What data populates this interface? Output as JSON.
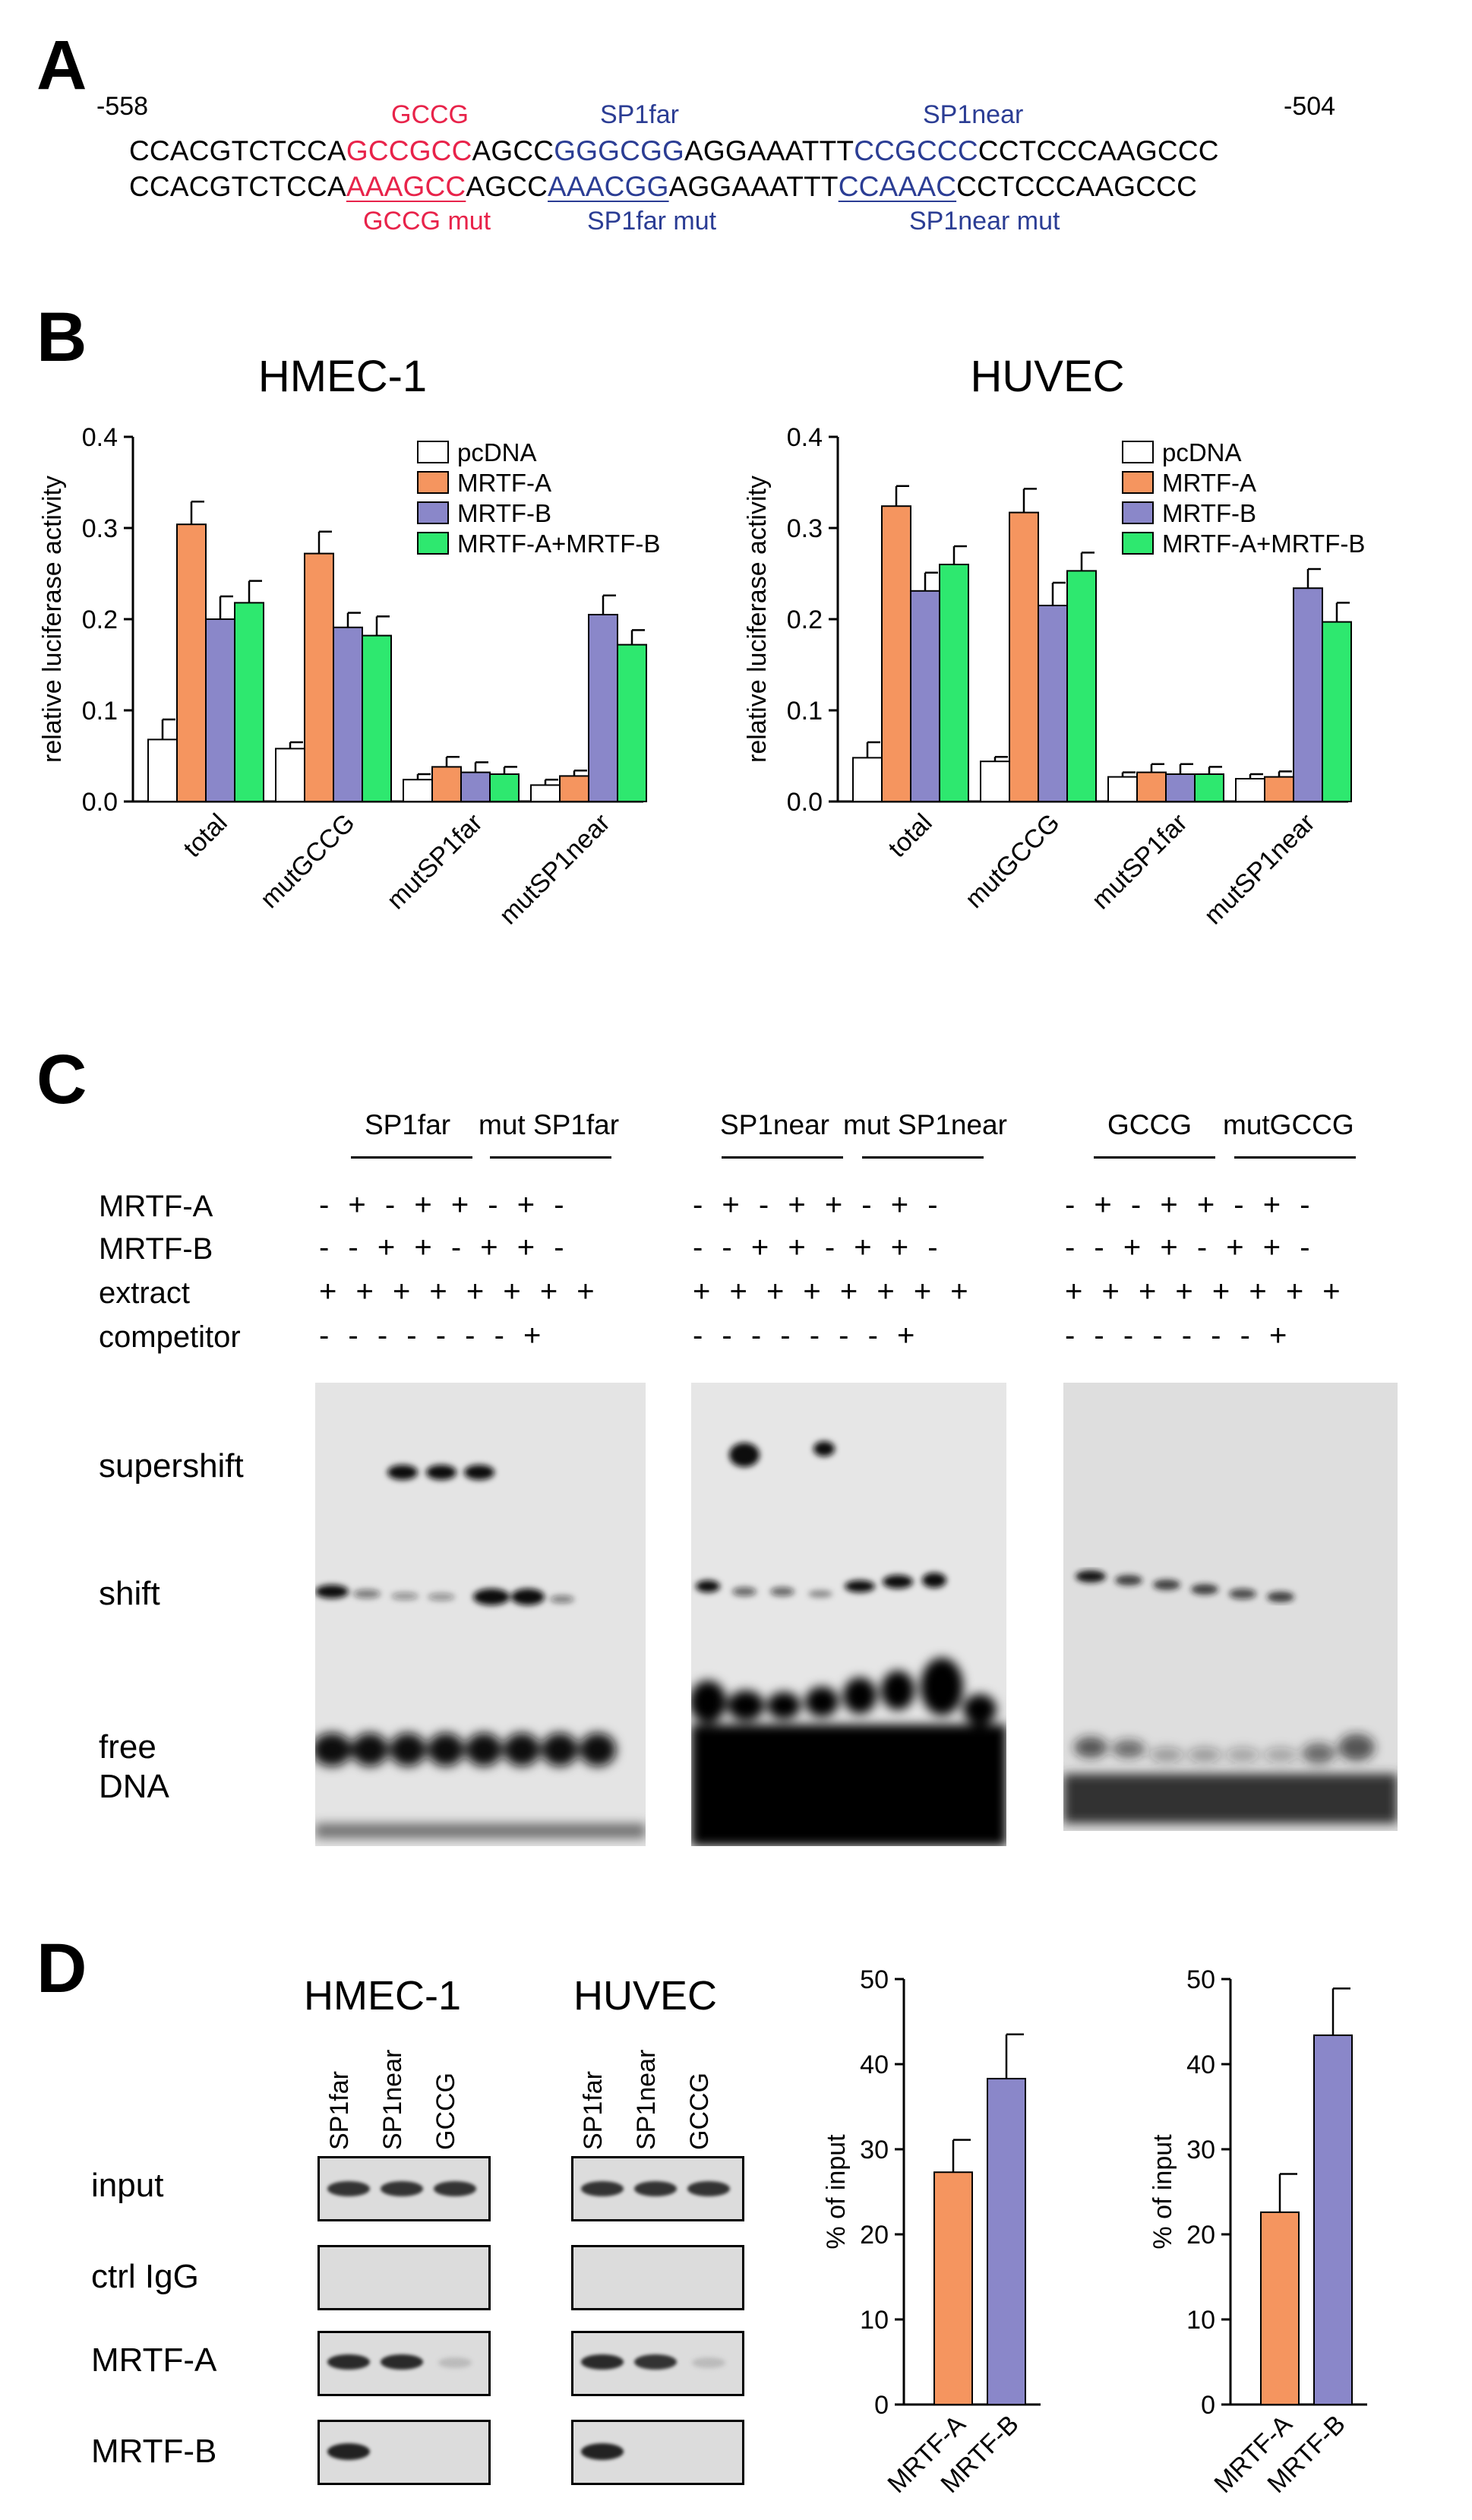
{
  "panels": {
    "a": "A",
    "b": "B",
    "c": "C",
    "d": "D"
  },
  "panelA": {
    "pos_left": "-558",
    "pos_right": "-504",
    "label_gccg": "GCCG",
    "label_sp1far": "SP1far",
    "label_sp1near": "SP1near",
    "label_gccg_mut": "GCCG mut",
    "label_sp1far_mut": "SP1far mut",
    "label_sp1near_mut": "SP1near mut",
    "wt": {
      "s1": "CCACGTCTCCA",
      "s2": "GCCGCC",
      "s3": "AGCC",
      "s4": "GGGCGG",
      "s5": "AGGAAATTT",
      "s6": "CCGCCC",
      "s7": "CCTCCCAAGCCC"
    },
    "mut": {
      "s1": "CCACGTCTCCA",
      "s2": "AAAGCC",
      "s3": "AGCC",
      "s4": "AAACGG",
      "s5": "AGGAAATTT",
      "s6": "CCAAAC",
      "s7": "CCTCCCAAGCCC"
    }
  },
  "panelC": {
    "header_far": "SP1far",
    "header_mutfar": "mut SP1far",
    "header_near": "SP1near",
    "header_mutnear": "mut SP1near",
    "header_gccg": "GCCG",
    "header_mutgccg": "mutGCCG",
    "row_mrtfa": "MRTF-A",
    "row_mrtfb": "MRTF-B",
    "row_extract": "extract",
    "row_competitor": "competitor",
    "signs_mrtfa": "-  +  -  +  +  -  +  -",
    "signs_mrtfb": "-  -  +  +  -  +  +  -",
    "signs_extract": "+  +  +  +  +  +  +  +",
    "signs_competitor": "-  -  -  -  -  -  -  +",
    "gel_supershift": "supershift",
    "gel_shift": "shift",
    "gel_free": "free",
    "gel_dna": "DNA"
  },
  "panelD": {
    "title_hmec": "HMEC-1",
    "title_huvec": "HUVEC",
    "lanes": [
      "SP1far",
      "SP1near",
      "GCCG"
    ],
    "rows": [
      "input",
      "ctrl IgG",
      "MRTF-A",
      "MRTF-B"
    ]
  },
  "colors": {
    "pcdna": "#ffffff",
    "mrtfa": "#f5955f",
    "mrtfb": "#8a87c9",
    "both": "#2ee86f",
    "red": "#e8234a",
    "blue": "#2b3d94"
  },
  "chart_data": [
    {
      "type": "bar",
      "title": "HMEC-1",
      "ylabel": "relative luciferase activity",
      "ylim": [
        0,
        0.4
      ],
      "yticks": [
        "0.0",
        "0.1",
        "0.2",
        "0.3",
        "0.4"
      ],
      "categories": [
        "total",
        "mutGCCG",
        "mutSP1far",
        "mutSP1near"
      ],
      "series": [
        {
          "name": "pcDNA",
          "color": "#ffffff",
          "values": [
            0.068,
            0.058,
            0.024,
            0.018
          ],
          "errors": [
            0.022,
            0.007,
            0.006,
            0.006
          ]
        },
        {
          "name": "MRTF-A",
          "color": "#f5955f",
          "values": [
            0.304,
            0.272,
            0.038,
            0.028
          ],
          "errors": [
            0.025,
            0.024,
            0.011,
            0.006
          ]
        },
        {
          "name": "MRTF-B",
          "color": "#8a87c9",
          "values": [
            0.2,
            0.191,
            0.032,
            0.205
          ],
          "errors": [
            0.025,
            0.016,
            0.011,
            0.021
          ]
        },
        {
          "name": "MRTF-A+MRTF-B",
          "color": "#2ee86f",
          "values": [
            0.218,
            0.182,
            0.03,
            0.172
          ],
          "errors": [
            0.024,
            0.021,
            0.008,
            0.016
          ]
        }
      ],
      "legend": "top-right"
    },
    {
      "type": "bar",
      "title": "HUVEC",
      "ylabel": "relative luciferase activity",
      "ylim": [
        0,
        0.4
      ],
      "yticks": [
        "0.0",
        "0.1",
        "0.2",
        "0.3",
        "0.4"
      ],
      "categories": [
        "total",
        "mutGCCG",
        "mutSP1far",
        "mutSP1near"
      ],
      "series": [
        {
          "name": "pcDNA",
          "color": "#ffffff",
          "values": [
            0.048,
            0.044,
            0.027,
            0.025
          ],
          "errors": [
            0.017,
            0.005,
            0.005,
            0.005
          ]
        },
        {
          "name": "MRTF-A",
          "color": "#f5955f",
          "values": [
            0.324,
            0.317,
            0.032,
            0.027
          ],
          "errors": [
            0.022,
            0.026,
            0.009,
            0.006
          ]
        },
        {
          "name": "MRTF-B",
          "color": "#8a87c9",
          "values": [
            0.231,
            0.215,
            0.03,
            0.234
          ],
          "errors": [
            0.02,
            0.025,
            0.011,
            0.021
          ]
        },
        {
          "name": "MRTF-A+MRTF-B",
          "color": "#2ee86f",
          "values": [
            0.26,
            0.253,
            0.03,
            0.197
          ],
          "errors": [
            0.02,
            0.02,
            0.008,
            0.021
          ]
        }
      ],
      "legend": "top-right"
    },
    {
      "type": "bar",
      "title": "",
      "ylabel": "% of input",
      "ylim": [
        0,
        50
      ],
      "yticks": [
        "0",
        "10",
        "20",
        "30",
        "40",
        "50"
      ],
      "categories": [
        "MRTF-A",
        "MRTF-B"
      ],
      "series": [
        {
          "values": [
            27.3,
            38.3
          ],
          "errors": [
            3.8,
            5.2
          ],
          "colors": [
            "#f5955f",
            "#8a87c9"
          ]
        }
      ]
    },
    {
      "type": "bar",
      "title": "",
      "ylabel": "% of input",
      "ylim": [
        0,
        50
      ],
      "yticks": [
        "0",
        "10",
        "20",
        "30",
        "40",
        "50"
      ],
      "categories": [
        "MRTF-A",
        "MRTF-B"
      ],
      "series": [
        {
          "values": [
            22.6,
            43.4
          ],
          "errors": [
            4.5,
            5.5
          ],
          "colors": [
            "#f5955f",
            "#8a87c9"
          ]
        }
      ]
    }
  ]
}
